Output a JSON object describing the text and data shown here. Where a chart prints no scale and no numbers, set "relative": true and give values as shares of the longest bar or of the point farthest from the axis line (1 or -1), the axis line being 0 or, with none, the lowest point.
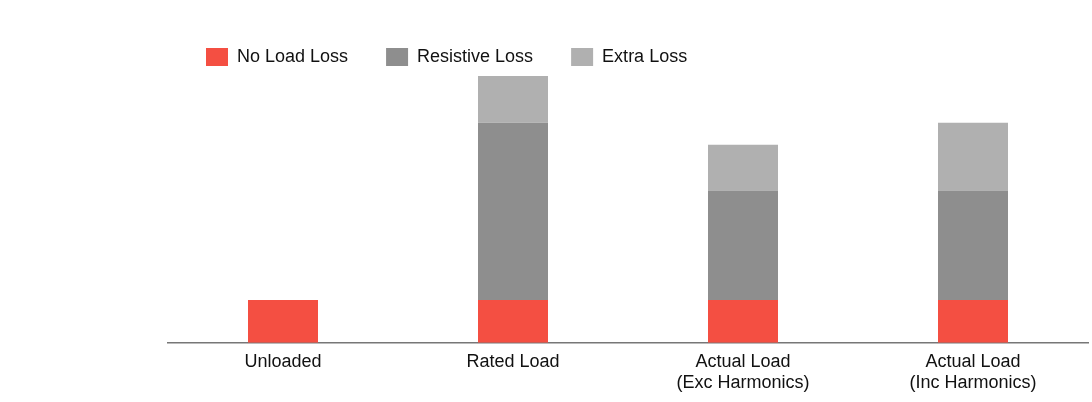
{
  "chart_data": {
    "type": "bar",
    "stacked": true,
    "relative": true,
    "categories": [
      "Unloaded",
      "Rated Load",
      "Actual Load\n(Exc Harmonics)",
      "Actual Load\n(Inc Harmonics)"
    ],
    "series": [
      {
        "name": "No Load Loss",
        "color": "#f44f42",
        "values": [
          0.16,
          0.16,
          0.16,
          0.16
        ]
      },
      {
        "name": "Resistive Loss",
        "color": "#8e8e8e",
        "values": [
          null,
          0.665,
          0.411,
          0.411
        ]
      },
      {
        "name": "Extra Loss",
        "color": "#b0b0b0",
        "values": [
          null,
          0.175,
          0.171,
          0.254
        ]
      }
    ],
    "legend": "top left",
    "grid": false
  }
}
